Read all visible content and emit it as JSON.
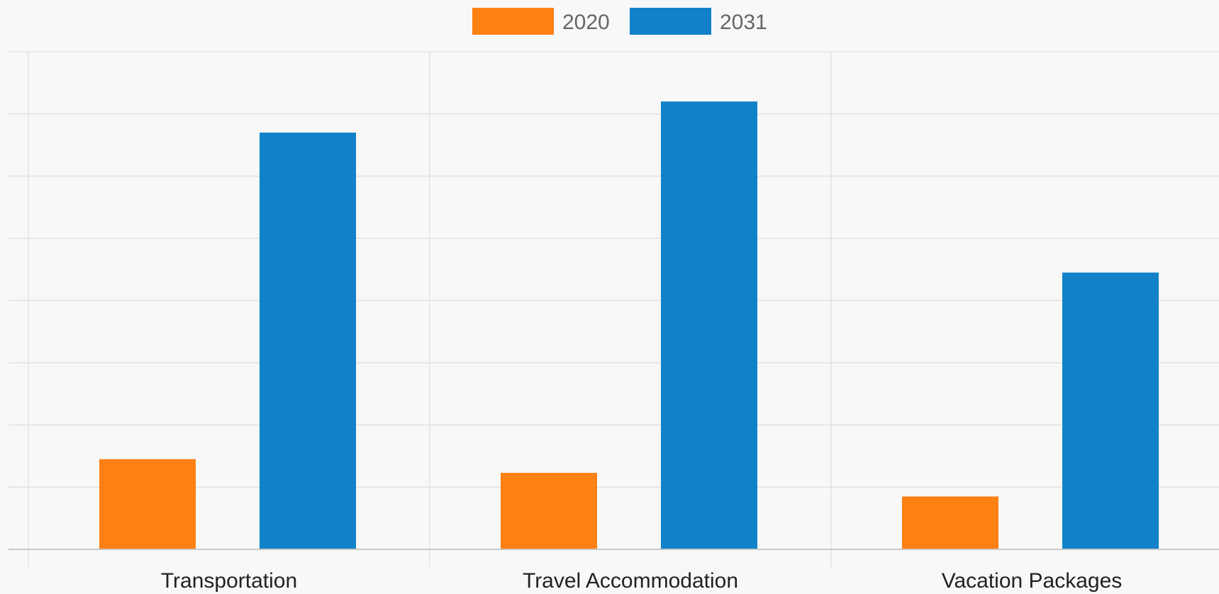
{
  "chart_data": {
    "type": "bar",
    "title": "",
    "xlabel": "",
    "ylabel": "",
    "categories": [
      "Transportation",
      "Travel Accommodation",
      "Vacation Packages"
    ],
    "series": [
      {
        "name": "2020",
        "color": "#ff8013",
        "values": [
          1.45,
          1.23,
          0.85
        ]
      },
      {
        "name": "2031",
        "color": "#1181c9",
        "values": [
          6.7,
          7.2,
          4.45
        ]
      }
    ],
    "ylim": [
      0,
      8
    ],
    "y_ticks": [
      0,
      1,
      2,
      3,
      4,
      5,
      6,
      7,
      8
    ],
    "y_tick_labels_visible": false,
    "grid": true,
    "legend_placement": "top-center"
  }
}
